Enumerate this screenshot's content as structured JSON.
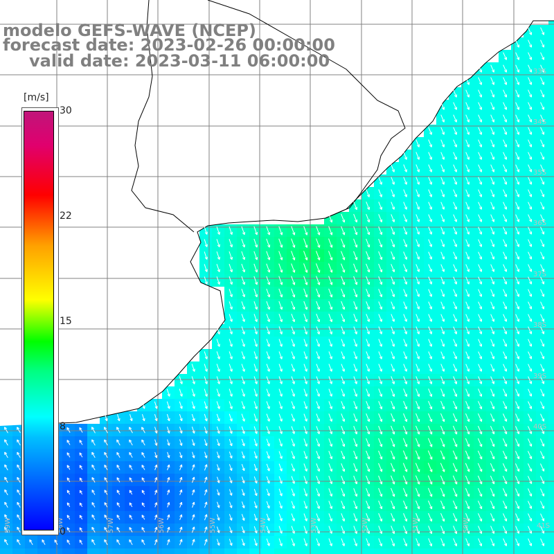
{
  "title": {
    "line1": "modelo GEFS-WAVE (NCEP)",
    "line2": "forecast date: 2023-02-26 00:00:00",
    "line3": "valid date: 2023-03-11 06:00:00"
  },
  "colorbar": {
    "unit": "[m/s]",
    "ticks": [
      "30",
      "22",
      "15",
      "8",
      "0"
    ],
    "min": 0,
    "max": 30,
    "colors": [
      "#0000ff",
      "#00bfff",
      "#00ffff",
      "#00ff80",
      "#00ff00",
      "#ffff00",
      "#ffa000",
      "#ff0000",
      "#c0157a"
    ]
  },
  "map": {
    "land_color": "#ffffff",
    "coast_color": "#000000",
    "grid_color": "#808080",
    "arrow_color": "#ffffff",
    "lat_labels": [
      "33S",
      "34S",
      "35S",
      "36S",
      "37S",
      "38S",
      "39S",
      "40S",
      "41S"
    ],
    "lon_labels": [
      "59W",
      "58W",
      "57W",
      "56W",
      "55W",
      "54W",
      "53W",
      "52W",
      "51W",
      "50W"
    ],
    "wind_direction_dominant": "S-SW (towards south)",
    "field_description_values": {
      "nearshore_south": 4,
      "central_plume": 12,
      "southeast_max": 11
    }
  }
}
